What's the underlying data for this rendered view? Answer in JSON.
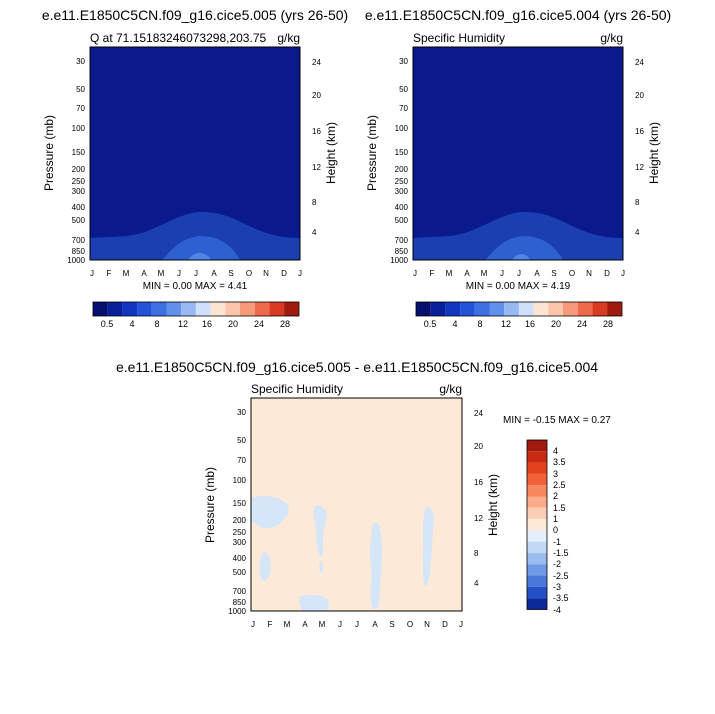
{
  "colors": {
    "deep_blue": "#0a1a8c",
    "mid_blue": "#1b3fb0",
    "light_blue": "#2e60d2",
    "lighter_blue": "#4f86e6",
    "peach": "#fde9d8",
    "pale_blue": "#d4e6f8"
  },
  "chart_data": [
    {
      "type": "heatmap",
      "title": "e.e11.E1850C5CN.f09_g16.cice5.005 (yrs 26-50)",
      "subtitle_left": "Q at 71.15183246073298,203.75",
      "subtitle_right": "g/kg",
      "ylabel": "Pressure (mb)",
      "ylabel_right": "Height (km)",
      "x_ticks": [
        "J",
        "F",
        "M",
        "A",
        "M",
        "J",
        "J",
        "A",
        "S",
        "O",
        "N",
        "D",
        "J"
      ],
      "y_ticks": [
        "30",
        "50",
        "70",
        "100",
        "150",
        "200",
        "250",
        "300",
        "400",
        "500",
        "700",
        "850",
        "1000"
      ],
      "y_right_ticks": [
        "24",
        "20",
        "16",
        "12",
        "8",
        "4"
      ],
      "min_max": "MIN =   0.00 MAX =   4.41",
      "colorbar_labels": [
        "0.5",
        "4",
        "8",
        "12",
        "16",
        "20",
        "24",
        "28"
      ]
    },
    {
      "type": "heatmap",
      "title": "e.e11.E1850C5CN.f09_g16.cice5.004 (yrs 26-50)",
      "subtitle_left": "Specific Humidity",
      "subtitle_right": "g/kg",
      "ylabel": "Pressure (mb)",
      "ylabel_right": "Height (km)",
      "x_ticks": [
        "J",
        "F",
        "M",
        "A",
        "M",
        "J",
        "J",
        "A",
        "S",
        "O",
        "N",
        "D",
        "J"
      ],
      "y_ticks": [
        "30",
        "50",
        "70",
        "100",
        "150",
        "200",
        "250",
        "300",
        "400",
        "500",
        "700",
        "850",
        "1000"
      ],
      "y_right_ticks": [
        "24",
        "20",
        "16",
        "12",
        "8",
        "4"
      ],
      "min_max": "MIN =   0.00 MAX =   4.19",
      "colorbar_labels": [
        "0.5",
        "4",
        "8",
        "12",
        "16",
        "20",
        "24",
        "28"
      ]
    },
    {
      "type": "heatmap",
      "title": "e.e11.E1850C5CN.f09_g16.cice5.005 - e.e11.E1850C5CN.f09_g16.cice5.004",
      "subtitle_left": "Specific Humidity",
      "subtitle_right": "g/kg",
      "ylabel": "Pressure (mb)",
      "ylabel_right": "Height (km)",
      "x_ticks": [
        "J",
        "F",
        "M",
        "A",
        "M",
        "J",
        "J",
        "A",
        "S",
        "O",
        "N",
        "D",
        "J"
      ],
      "y_ticks": [
        "30",
        "50",
        "70",
        "100",
        "150",
        "200",
        "250",
        "300",
        "400",
        "500",
        "700",
        "850",
        "1000"
      ],
      "y_right_ticks": [
        "24",
        "20",
        "16",
        "12",
        "8",
        "4"
      ],
      "min_max": "MIN =  -0.15 MAX =   0.27",
      "colorbar_labels": [
        "4",
        "3.5",
        "3",
        "2.5",
        "2",
        "1.5",
        "1",
        "0",
        "-1",
        "-1.5",
        "-2",
        "-2.5",
        "-3",
        "-3.5",
        "-4"
      ]
    }
  ]
}
